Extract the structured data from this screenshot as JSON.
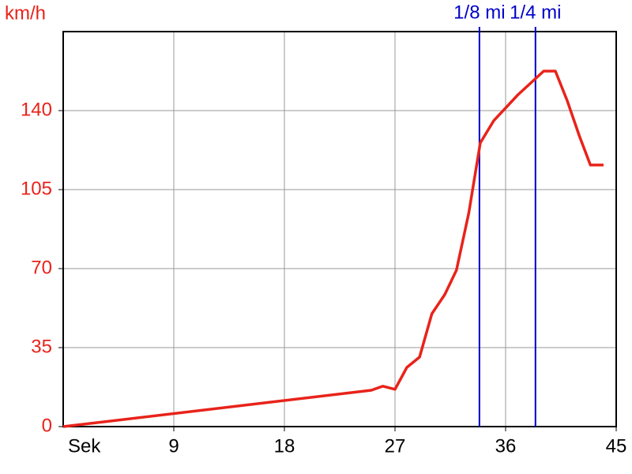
{
  "chart_data": {
    "type": "line",
    "y_label": "km/h",
    "x_label": "Sek",
    "x": [
      0,
      25.07,
      26,
      27,
      27.96,
      29,
      30,
      31.05,
      32,
      33,
      33.94,
      35.03,
      37,
      39.1,
      40.05,
      41,
      42,
      42.9,
      43.97
    ],
    "series": [
      {
        "name": "km/h",
        "color": "#e8231a",
        "values": [
          0,
          16.1,
          17.9,
          16.5,
          26.2,
          30.8,
          50,
          58.5,
          69.3,
          94.5,
          125.7,
          135.5,
          147,
          157.5,
          157.5,
          144.6,
          128.8,
          115.9,
          115.9
        ]
      }
    ],
    "xlim": [
      0,
      45
    ],
    "xticks": [
      9,
      18,
      27,
      36,
      45
    ],
    "ylim": [
      0,
      175
    ],
    "yticks": [
      0,
      35,
      70,
      105,
      140
    ],
    "grid": true,
    "y_tick_color": "#e8231a",
    "markers": [
      {
        "x": 33.87,
        "label": "1/8 mi",
        "color": "#0000c8"
      },
      {
        "x": 38.43,
        "label": "1/4 mi",
        "color": "#0000c8"
      }
    ]
  }
}
